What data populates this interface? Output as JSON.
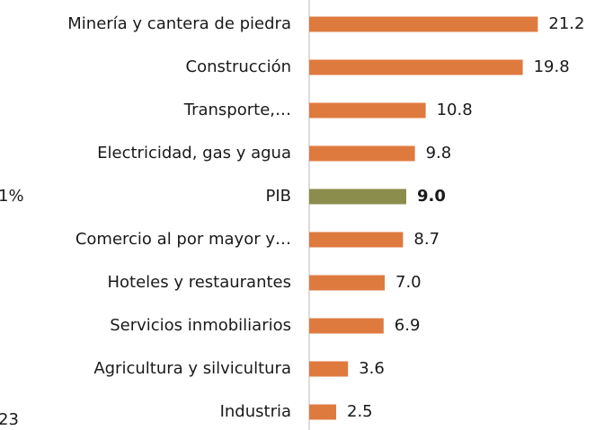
{
  "chart_data": {
    "type": "bar",
    "orientation": "horizontal",
    "categories": [
      "Minería y cantera de piedra",
      "Construcción",
      "Transporte,…",
      "Electricidad, gas y agua",
      "PIB",
      "Comercio al por mayor y…",
      "Hoteles y restaurantes",
      "Servicios inmobiliarios",
      "Agricultura y silvicultura",
      "Industria"
    ],
    "values": [
      21.2,
      19.8,
      10.8,
      9.8,
      9.0,
      8.7,
      7.0,
      6.9,
      3.6,
      2.5
    ],
    "value_labels": [
      "21.2",
      "19.8",
      "10.8",
      "9.8",
      "9.0",
      "8.7",
      "7.0",
      "6.9",
      "3.6",
      "2.5"
    ],
    "colors": [
      "#df7a3f",
      "#df7a3f",
      "#df7a3f",
      "#df7a3f",
      "#8a8d4c",
      "#df7a3f",
      "#df7a3f",
      "#df7a3f",
      "#df7a3f",
      "#df7a3f"
    ],
    "highlight": "PIB",
    "xlim": [
      0,
      25
    ],
    "annotations": [
      "1%",
      "23"
    ]
  }
}
